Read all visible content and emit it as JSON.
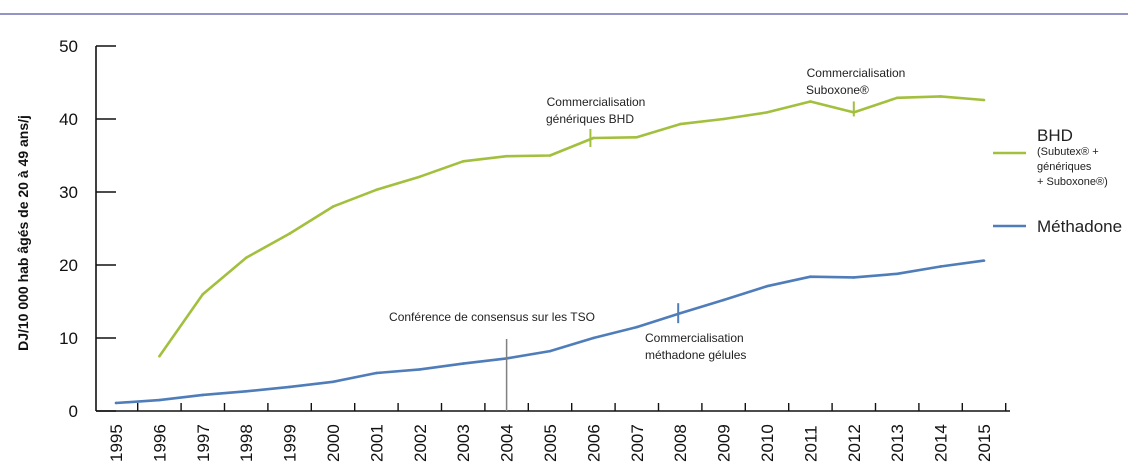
{
  "colors": {
    "bhd": "#a2c03d",
    "methadone": "#4f7dba",
    "top_rule": "#7170b0",
    "marker": "#808080"
  },
  "chart_data": {
    "type": "line",
    "ylabel": "DJ/10 000 hab âgés de 20 à 49 ans/j",
    "ylim": [
      0,
      50
    ],
    "yticks": [
      "0",
      "10",
      "20",
      "30",
      "40",
      "50"
    ],
    "x": [
      "1995",
      "1996",
      "1997",
      "1998",
      "1999",
      "2000",
      "2001",
      "2002",
      "2003",
      "2004",
      "2005",
      "2006",
      "2007",
      "2008",
      "2009",
      "2010",
      "2011",
      "2012",
      "2013",
      "2014",
      "2015"
    ],
    "series": [
      {
        "name": "BHD",
        "key": "bhd",
        "values": [
          null,
          7.5,
          16.0,
          21.0,
          24.3,
          28.0,
          30.3,
          32.1,
          34.2,
          34.9,
          35.0,
          37.4,
          37.5,
          39.3,
          40.0,
          40.9,
          42.4,
          40.9,
          42.9,
          43.1,
          42.6
        ]
      },
      {
        "name": "Méthadone",
        "key": "methadone",
        "values": [
          1.1,
          1.5,
          2.2,
          2.7,
          3.3,
          4.0,
          5.2,
          5.7,
          6.5,
          7.2,
          8.2,
          10.0,
          11.5,
          13.4,
          15.2,
          17.1,
          18.4,
          18.3,
          18.8,
          19.8,
          20.6
        ]
      }
    ],
    "legend": {
      "bhd_title": "BHD",
      "bhd_sub1": "(Subutex® +",
      "bhd_sub2": "génériques",
      "bhd_sub3": "+ Suboxone®)",
      "methadone": "Méthadone"
    },
    "annotations": {
      "consensus": "Conférence de consensus sur les TSO",
      "generiques_1": "Commercialisation",
      "generiques_2": "génériques BHD",
      "suboxone_1": "Commercialisation",
      "suboxone_2": "Suboxone®",
      "gelules_1": "Commercialisation",
      "gelules_2": "méthadone gélules"
    }
  }
}
